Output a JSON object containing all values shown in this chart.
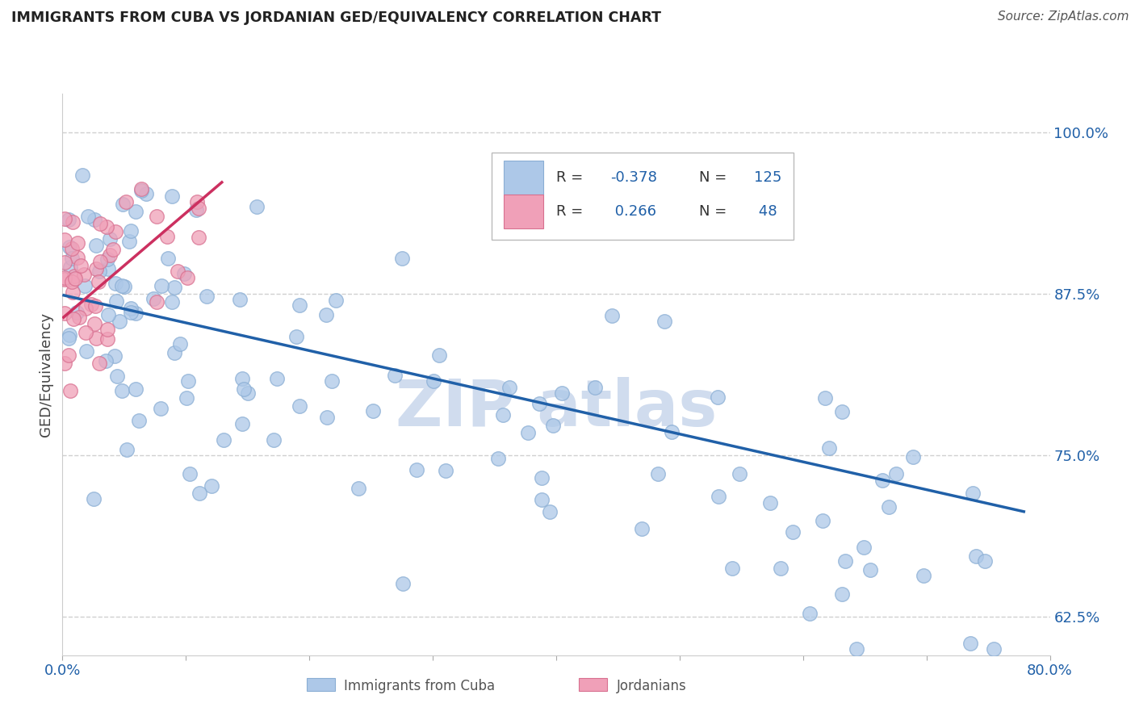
{
  "title": "IMMIGRANTS FROM CUBA VS JORDANIAN GED/EQUIVALENCY CORRELATION CHART",
  "source": "Source: ZipAtlas.com",
  "ylabel": "GED/Equivalency",
  "y_ticks": [
    0.625,
    0.75,
    0.875,
    1.0
  ],
  "y_tick_labels": [
    "62.5%",
    "75.0%",
    "87.5%",
    "100.0%"
  ],
  "xlim": [
    0.0,
    0.8
  ],
  "ylim": [
    0.595,
    1.03
  ],
  "blue_line_x": [
    0.0,
    0.78
  ],
  "blue_line_y": [
    0.874,
    0.706
  ],
  "pink_line_x": [
    0.0,
    0.13
  ],
  "pink_line_y": [
    0.856,
    0.962
  ],
  "blue_line_color": "#2060a8",
  "pink_line_color": "#cc3060",
  "scatter_blue_color": "#adc8e8",
  "scatter_pink_color": "#f0a0b8",
  "scatter_blue_edge": "#8aaed4",
  "scatter_pink_edge": "#d87090",
  "watermark_color": "#d0dcee",
  "grid_color": "#d0d0d0",
  "background_color": "#ffffff",
  "tick_color": "#2060a8",
  "title_color": "#222222",
  "source_color": "#555555",
  "legend_label_color": "#333333",
  "legend_value_color": "#2060a8"
}
